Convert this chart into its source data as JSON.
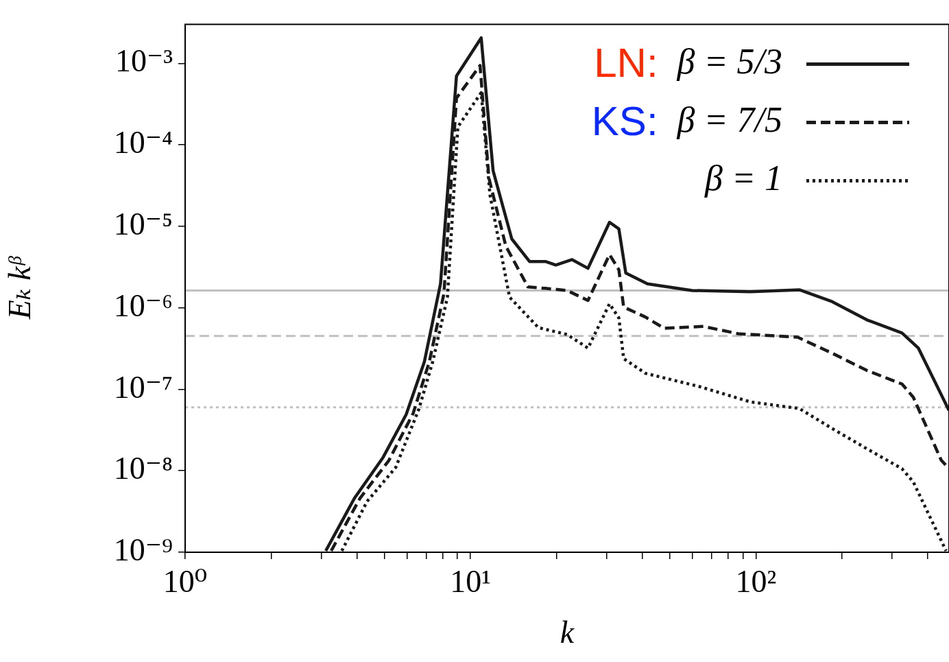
{
  "chart_data": {
    "type": "line",
    "xlabel": "k",
    "ylabel": "Eₖ kᵝ",
    "log": "xy",
    "xlim": [
      1,
      475
    ],
    "ylim": [
      1e-09,
      0.003
    ],
    "xticks": [
      {
        "value": 1,
        "label": "10⁰"
      },
      {
        "value": 2,
        "label": null
      },
      {
        "value": 3,
        "label": null
      },
      {
        "value": 4,
        "label": null
      },
      {
        "value": 5,
        "label": null
      },
      {
        "value": 6,
        "label": null
      },
      {
        "value": 7,
        "label": null
      },
      {
        "value": 8,
        "label": null
      },
      {
        "value": 9,
        "label": null
      },
      {
        "value": 10,
        "label": "10¹"
      },
      {
        "value": 20,
        "label": null
      },
      {
        "value": 30,
        "label": null
      },
      {
        "value": 40,
        "label": null
      },
      {
        "value": 50,
        "label": null
      },
      {
        "value": 60,
        "label": null
      },
      {
        "value": 70,
        "label": null
      },
      {
        "value": 80,
        "label": null
      },
      {
        "value": 90,
        "label": null
      },
      {
        "value": 100,
        "label": "10²"
      },
      {
        "value": 200,
        "label": null
      },
      {
        "value": 300,
        "label": null
      },
      {
        "value": 400,
        "label": null
      }
    ],
    "yticks": [
      {
        "value": 1e-09,
        "label": "10⁻⁹"
      },
      {
        "value": 1e-08,
        "label": "10⁻⁸"
      },
      {
        "value": 1e-07,
        "label": "10⁻⁷"
      },
      {
        "value": 1e-06,
        "label": "10⁻⁶"
      },
      {
        "value": 1e-05,
        "label": "10⁻⁵"
      },
      {
        "value": 0.0001,
        "label": "10⁻⁴"
      },
      {
        "value": 0.001,
        "label": "10⁻³"
      }
    ],
    "grid": false,
    "legend": "top right",
    "annotations": [
      "LN:",
      "KS:"
    ],
    "ref_lines": [
      {
        "axis": "y",
        "value": 1.63e-06,
        "color": "#c0c0c0",
        "line_style": "solid"
      },
      {
        "axis": "y",
        "value": 4.5e-07,
        "color": "#c0c0c0",
        "line_style": "dashed"
      },
      {
        "axis": "y",
        "value": 6e-08,
        "color": "#c0c0c0",
        "line_style": "dotted"
      }
    ],
    "series": [
      {
        "name": "β = 5/3",
        "color": "#1a1a1a",
        "line_style": "solid",
        "x": [
          3.11,
          3.92,
          4.94,
          5.95,
          6.89,
          7.85,
          8.93,
          10.9,
          12.0,
          13.95,
          16.1,
          18.3,
          19.9,
          22.7,
          25.8,
          30.7,
          33.1,
          35.0,
          41.7,
          59.8,
          95.6,
          142,
          185,
          245,
          325,
          371,
          475
        ],
        "values": [
          1.04e-09,
          4.6e-09,
          1.46e-08,
          4.9e-08,
          2.17e-07,
          1.97e-06,
          0.0007,
          0.00205,
          4.8e-05,
          7e-06,
          3.7e-06,
          3.7e-06,
          3.35e-06,
          3.9e-06,
          3.05e-06,
          1.12e-05,
          9.3e-06,
          2.67e-06,
          1.97e-06,
          1.63e-06,
          1.57e-06,
          1.66e-06,
          1.19e-06,
          7.1e-07,
          4.9e-07,
          3.2e-07,
          5.5e-08
        ]
      },
      {
        "name": "β = 7/5",
        "color": "#1a1a1a",
        "line_style": "dashed",
        "x": [
          3.25,
          4.1,
          5.17,
          6.3,
          7.17,
          8.07,
          8.93,
          10.8,
          11.6,
          13.3,
          15.9,
          18.3,
          21.8,
          25.8,
          30.7,
          33.1,
          34.4,
          41.0,
          47.7,
          65.5,
          86.8,
          140,
          185,
          245,
          325,
          356,
          446,
          475
        ],
        "values": [
          1.04e-09,
          4.6e-09,
          1.33e-08,
          5.1e-08,
          2.17e-07,
          1.49e-06,
          0.000375,
          0.00094,
          3.9e-05,
          5.7e-06,
          1.8e-06,
          1.73e-06,
          1.63e-06,
          1.23e-06,
          4.5e-06,
          2.93e-06,
          1.02e-06,
          7.7e-07,
          5.6e-07,
          5.9e-07,
          4.8e-07,
          4.35e-07,
          2.77e-07,
          1.7e-07,
          1.16e-07,
          8e-08,
          1.35e-08,
          1.06e-08
        ]
      },
      {
        "name": "β = 1",
        "color": "#1a1a1a",
        "line_style": "dotted",
        "x": [
          3.54,
          4.34,
          5.47,
          6.59,
          7.37,
          8.3,
          9.03,
          10.9,
          11.7,
          13.7,
          17.3,
          21.8,
          25.8,
          30.7,
          33.1,
          34.4,
          41.0,
          63.3,
          95.6,
          142,
          185,
          245,
          325,
          356,
          464
        ],
        "values": [
          1.04e-09,
          4.2e-09,
          1.1e-08,
          5.7e-08,
          2.17e-07,
          1.35e-06,
          0.000166,
          0.000436,
          2.43e-05,
          1.35e-06,
          5.7e-07,
          4.7e-07,
          3.2e-07,
          1.12e-06,
          7.5e-07,
          2.38e-07,
          1.57e-07,
          1.08e-07,
          7e-08,
          5.8e-08,
          3.3e-08,
          1.86e-08,
          1.06e-08,
          7.3e-09,
          1.04e-09
        ]
      }
    ]
  }
}
